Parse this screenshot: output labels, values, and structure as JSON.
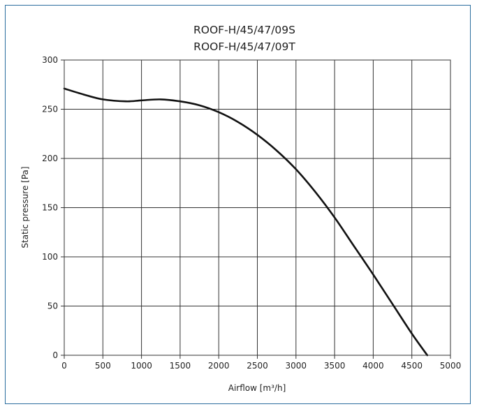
{
  "chart_data": {
    "type": "line",
    "title": "ROOF-H/45/47/09S",
    "subtitle": "ROOF-H/45/47/09T",
    "xlabel": "Airflow [m³/h]",
    "ylabel": "Static pressure [Pa]",
    "xlim": [
      0,
      5000
    ],
    "ylim": [
      0,
      300
    ],
    "xticks": [
      "0",
      "500",
      "1000",
      "1500",
      "2000",
      "2500",
      "3000",
      "3500",
      "4000",
      "4500",
      "5000"
    ],
    "yticks": [
      "0",
      "50",
      "100",
      "150",
      "200",
      "250",
      "300"
    ],
    "grid": true,
    "line_color": "#111111",
    "frame_color": "#2b6e9e",
    "series": [
      {
        "x": [
          0,
          250,
          500,
          800,
          1000,
          1250,
          1500,
          1750,
          2000,
          2250,
          2500,
          2750,
          3000,
          3250,
          3500,
          3750,
          4000,
          4250,
          4500,
          4700
        ],
        "y": [
          271,
          265,
          260,
          258,
          259,
          260,
          258,
          254,
          247,
          237,
          224,
          208,
          189,
          166,
          140,
          111,
          82,
          52,
          22,
          0
        ]
      }
    ]
  }
}
